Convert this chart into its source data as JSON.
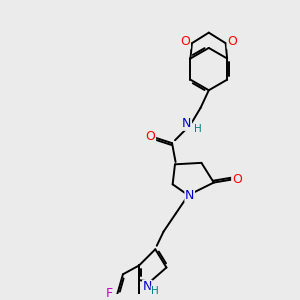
{
  "bg_color": "#ebebeb",
  "atom_colors": {
    "O": "#ff0000",
    "N": "#0000cd",
    "F": "#cc00cc",
    "H": "#008080",
    "C": "#000000"
  },
  "bond_width": 1.4,
  "font_size_atom": 9,
  "font_size_small": 7.5
}
